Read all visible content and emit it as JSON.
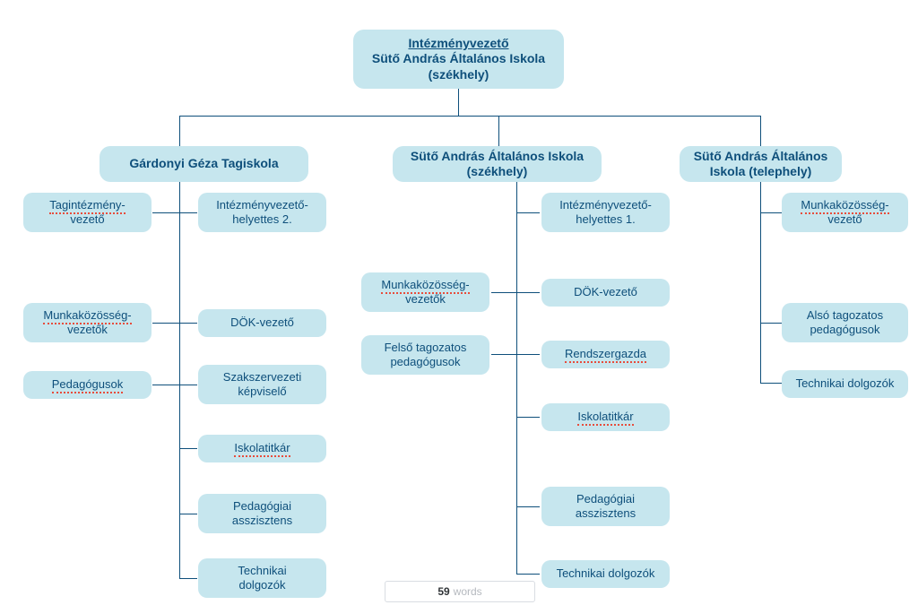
{
  "diagram": {
    "type": "tree",
    "node_fill": "#c6e6ee",
    "node_text_color": "#0e4f7b",
    "connector_color": "#0e4f7b",
    "background_color": "#ffffff",
    "accent_dotted_color": "#e74c3c",
    "font_family": "Helvetica Neue",
    "root_fontsize": 14,
    "branch_title_fontsize": 14,
    "leaf_fontsize": 13,
    "node_border_radius": 12,
    "root": {
      "line1_underline": "Intézményvezető",
      "line2": "Sütő András Általános Iskola",
      "line3": "(székhely)"
    },
    "branches": [
      {
        "title": "Gárdonyi Géza Tagiskola",
        "left_children": [
          {
            "text": "Tagintézmény-\nvezető",
            "dotted_first": true
          },
          {
            "text": "Munkaközösség-\nvezetők",
            "dotted_first": true
          },
          {
            "text": "Pedagógusok",
            "dotted_first": true
          }
        ],
        "right_children": [
          {
            "text": "Intézményvezető-\nhelyettes 2."
          },
          {
            "text": "DÖK-vezető"
          },
          {
            "text": "Szakszervezeti\nképviselő"
          },
          {
            "text": "Iskolatitkár",
            "dotted_first": true
          },
          {
            "text": "Pedagógiai\nasszisztens"
          },
          {
            "text": "Technikai\ndolgozók"
          }
        ]
      },
      {
        "title": "Sütő András Általános Iskola\n(székhely)",
        "left_children": [
          {
            "text": "Munkaközösség-\nvezetők",
            "dotted_first": true
          },
          {
            "text": "Felső tagozatos\npedagógusok"
          }
        ],
        "right_children": [
          {
            "text": "Intézményvezető-\nhelyettes 1."
          },
          {
            "text": "DÖK-vezető"
          },
          {
            "text": "Rendszergazda",
            "dotted_first": true
          },
          {
            "text": "Iskolatitkár",
            "dotted_first": true
          },
          {
            "text": "Pedagógiai\nasszisztens"
          },
          {
            "text": "Technikai dolgozók"
          }
        ]
      },
      {
        "title": "Sütő András Általános\nIskola (telephely)",
        "right_children": [
          {
            "text": "Munkaközösség-\nvezető",
            "dotted_first": true
          },
          {
            "text": "Alsó tagozatos\npedagógusok"
          },
          {
            "text": "Technikai dolgozók"
          }
        ]
      }
    ]
  },
  "word_counter": {
    "count": "59",
    "label": "words"
  }
}
